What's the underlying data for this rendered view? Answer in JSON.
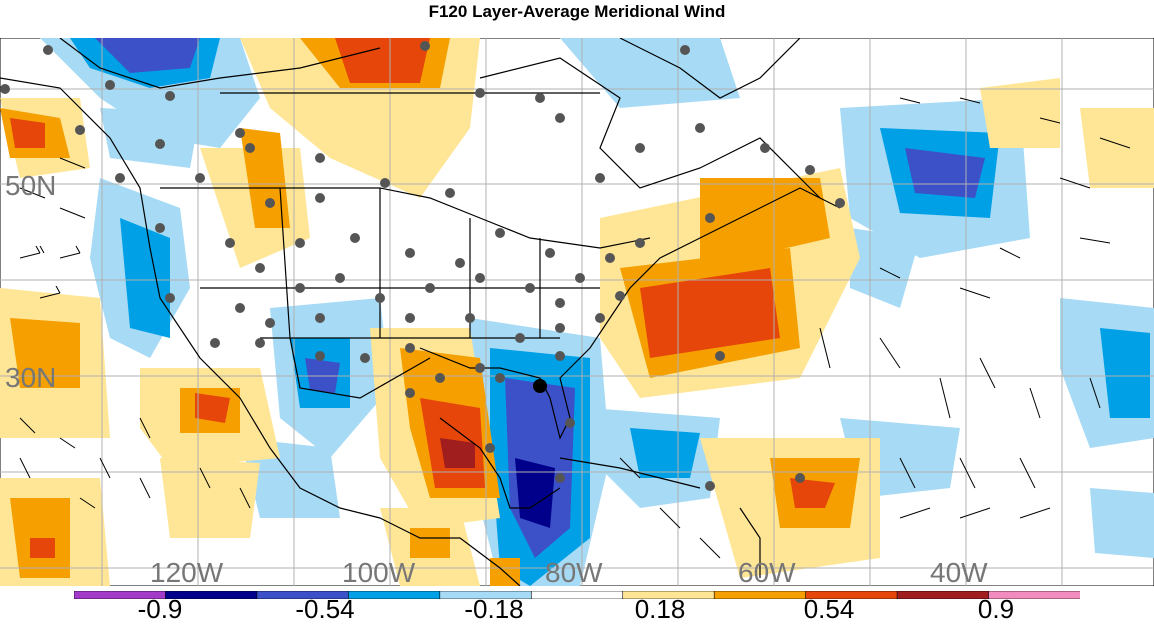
{
  "title": "F120 Layer-Average Meridional Wind",
  "map": {
    "lat_labels": [
      "50N",
      "30N"
    ],
    "lon_labels": [
      "120W",
      "100W",
      "80W",
      "60W",
      "40W"
    ],
    "features": [
      "coastlines",
      "state-borders",
      "country-borders",
      "wind-barbs",
      "station-dots",
      "lat-lon-grid"
    ]
  },
  "colorbar": {
    "colors": [
      "#a23cc8",
      "#00008b",
      "#3c50c8",
      "#00a0e6",
      "#a6daf5",
      "#ffffff",
      "#ffe696",
      "#f5a000",
      "#e6460a",
      "#a01e1e",
      "#f08cbe"
    ],
    "tick_labels": [
      "-0.9",
      "-0.54",
      "-0.18",
      "0.18",
      "0.54",
      "0.9"
    ]
  }
}
